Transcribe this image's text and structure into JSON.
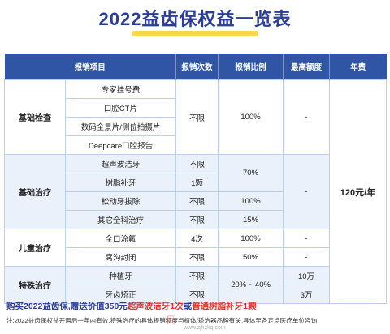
{
  "title": "2022益齿保权益一览表",
  "headers": [
    "报销项目",
    "报销次数",
    "报销比例",
    "最高额度",
    "年费"
  ],
  "groups": {
    "basic_check": {
      "label": "基础检查",
      "items": [
        "专家挂号费",
        "口腔CT片",
        "数码全景片/侧位拍摄片",
        "Deepcare口腔报告"
      ],
      "times": "不限",
      "ratio": "100%",
      "limit": "-"
    },
    "basic_treatment": {
      "label": "基础治疗",
      "items": [
        "超声波洁牙",
        "树脂补牙",
        "松动牙拔除",
        "其它全科治疗"
      ],
      "times_unlimited": "不限",
      "times_resin": "1颗",
      "times_extract": "不限",
      "times_other": "不限",
      "ratio_clean_resin": "70%",
      "ratio_extract": "100%",
      "ratio_other": "15%",
      "limit": "-"
    },
    "children": {
      "label": "儿童治疗",
      "items": [
        "全口涂氟",
        "窝沟封闭"
      ],
      "times_fluoride": "4次",
      "times_sealant": "不限",
      "ratio_fluoride": "100%",
      "ratio_sealant": "50%",
      "limit_fluoride": "-",
      "limit_sealant": "-"
    },
    "special": {
      "label": "特殊治疗",
      "items": [
        "种植牙",
        "牙齿矫正"
      ],
      "times_implant": "不限",
      "times_ortho": "不限",
      "ratio": "20% ~ 40%",
      "limit_implant": "10万",
      "limit_ortho": "3万"
    }
  },
  "annual_fee": "120元/年",
  "promo": {
    "part1": "购买2022益齿保,",
    "part2": "赠送价值350元",
    "part3": "超声波洁牙1次",
    "part4": "或",
    "part5": "普通树脂补牙1颗"
  },
  "note": "注:2022益齿保权益开通后一年内有效,特殊治疗的具体报销额度与植体/矫治器品牌有关,具体至各定点医疗单位咨询",
  "watermark": "网",
  "watermark_url": "www.zjhzkq.com"
}
